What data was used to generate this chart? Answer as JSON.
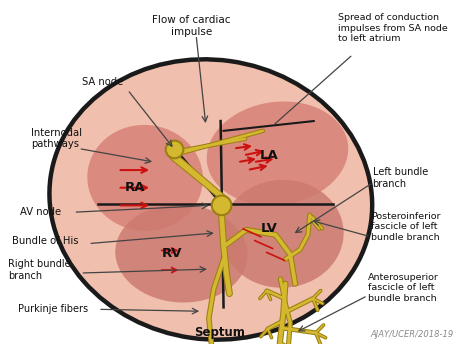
{
  "background_color": "#ffffff",
  "heart_outer_color": "#f2c8b8",
  "heart_border_color": "#1a1a1a",
  "ra_color": "#d9857a",
  "la_color": "#d9857a",
  "rv_color": "#cc7a70",
  "lv_color": "#cc7a70",
  "outer_fill": "#f0bfad",
  "conduction_color": "#d4b830",
  "conduction_edge": "#9a8010",
  "arrow_color": "#cc1111",
  "text_color": "#111111",
  "ann_line_color": "#444444",
  "watermark_color": "#888888",
  "labels": {
    "SA_node": "SA node",
    "internodal": "Internodal\npathways",
    "AV_node": "AV node",
    "bundle_his": "Bundle of His",
    "right_bundle": "Right bundle\nbranch",
    "purkinje": "Purkinje fibers",
    "left_bundle": "Left bundle\nbranch",
    "posteroinferior": "Posteroinferior\nfascicle of left\nbundle branch",
    "anterosuperior": "Anterosuperior\nfascicle of left\nbundle branch",
    "septum": "Septum",
    "flow_cardiac": "Flow of cardiac\nimpulse",
    "spread_conduction": "Spread of conduction\nimpulses from SA node\nto left atrium",
    "RA": "RA",
    "LA": "LA",
    "RV": "RV",
    "LV": "LV",
    "watermark": "AJAY/UCER/2018-19"
  }
}
